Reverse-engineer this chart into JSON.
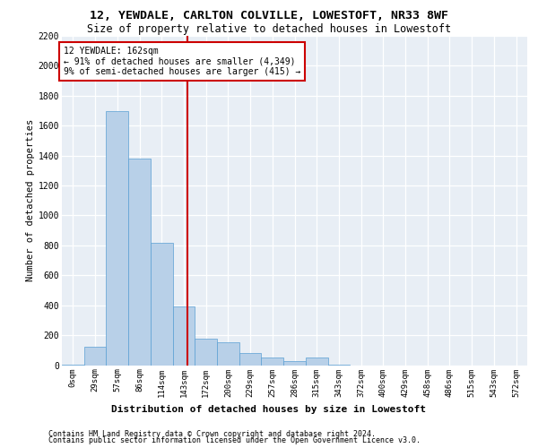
{
  "title1": "12, YEWDALE, CARLTON COLVILLE, LOWESTOFT, NR33 8WF",
  "title2": "Size of property relative to detached houses in Lowestoft",
  "xlabel": "Distribution of detached houses by size in Lowestoft",
  "ylabel": "Number of detached properties",
  "bar_labels": [
    "0sqm",
    "29sqm",
    "57sqm",
    "86sqm",
    "114sqm",
    "143sqm",
    "172sqm",
    "200sqm",
    "229sqm",
    "257sqm",
    "286sqm",
    "315sqm",
    "343sqm",
    "372sqm",
    "400sqm",
    "429sqm",
    "458sqm",
    "486sqm",
    "515sqm",
    "543sqm",
    "572sqm"
  ],
  "bar_values": [
    2,
    120,
    1700,
    1380,
    820,
    390,
    175,
    155,
    80,
    50,
    25,
    50,
    5,
    0,
    0,
    0,
    0,
    0,
    0,
    0,
    0
  ],
  "bar_color": "#b8d0e8",
  "bar_edgecolor": "#5a9fd4",
  "bg_color": "#e8eef5",
  "grid_color": "#ffffff",
  "vline_color": "#cc0000",
  "annotation_line1": "12 YEWDALE: 162sqm",
  "annotation_line2": "← 91% of detached houses are smaller (4,349)",
  "annotation_line3": "9% of semi-detached houses are larger (415) →",
  "ylim_max": 2200,
  "yticks": [
    0,
    200,
    400,
    600,
    800,
    1000,
    1200,
    1400,
    1600,
    1800,
    2000,
    2200
  ],
  "footer1": "Contains HM Land Registry data © Crown copyright and database right 2024.",
  "footer2": "Contains public sector information licensed under the Open Government Licence v3.0.",
  "property_sqm": 162,
  "bin_start_values": [
    0,
    29,
    57,
    86,
    114,
    143,
    172,
    200,
    229,
    257,
    286,
    315,
    343,
    372,
    400,
    429,
    458,
    486,
    515,
    543,
    572
  ]
}
